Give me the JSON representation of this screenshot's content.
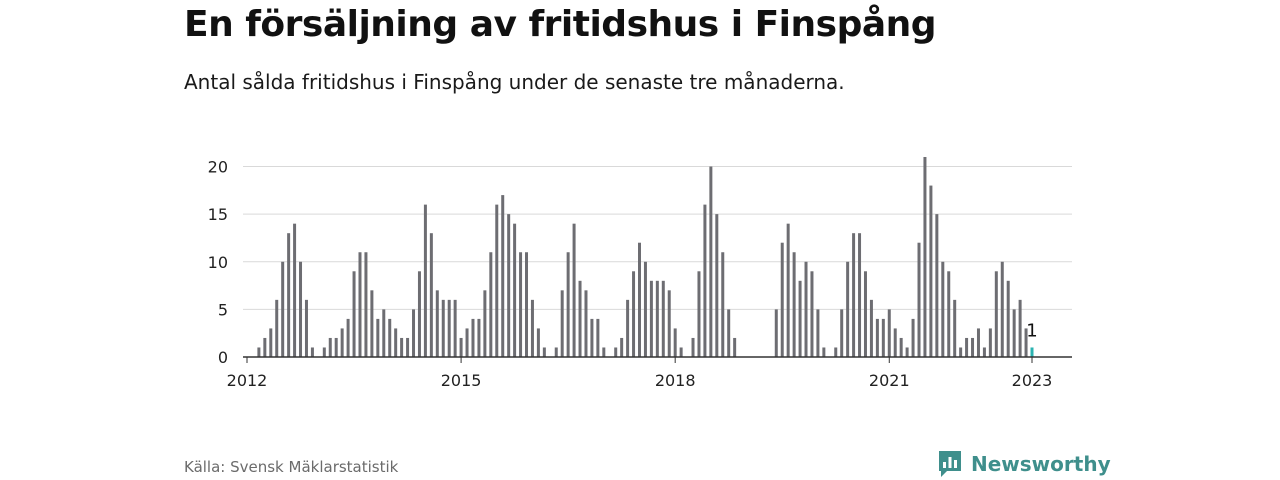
{
  "header": {
    "title": "En försäljning av fritidshus i Finspång",
    "subtitle": "Antal sålda fritidshus i Finspång under de senaste tre månaderna."
  },
  "footer": {
    "source": "Källa: Svensk Mäklarstatistik",
    "brand_name": "Newsworthy",
    "brand_icon": "newsworthy-chart-icon"
  },
  "colors": {
    "bar": "#6d6d72",
    "highlight": "#2bb3b1",
    "grid": "#d9d9d9",
    "axis": "#333333",
    "brand": "#3f8f8c"
  },
  "chart_data": {
    "type": "bar",
    "title": "",
    "xlabel": "",
    "ylabel": "",
    "ylim": [
      0,
      21
    ],
    "yticks": [
      0,
      5,
      10,
      15,
      20
    ],
    "grid": true,
    "x_start": "2012-01",
    "x_end": "2023-01",
    "xticks": [
      {
        "label": "2012",
        "date": "2012-01"
      },
      {
        "label": "2015",
        "date": "2015-01"
      },
      {
        "label": "2018",
        "date": "2018-01"
      },
      {
        "label": "2021",
        "date": "2021-01"
      },
      {
        "label": "2023",
        "date": "2023-01"
      }
    ],
    "highlight": {
      "date": "2023-01",
      "value": 1,
      "label": "1"
    },
    "series": [
      {
        "points": [
          [
            "2012-02",
            0
          ],
          [
            "2012-03",
            1
          ],
          [
            "2012-04",
            2
          ],
          [
            "2012-05",
            3
          ],
          [
            "2012-06",
            6
          ],
          [
            "2012-07",
            10
          ],
          [
            "2012-08",
            13
          ],
          [
            "2012-09",
            14
          ],
          [
            "2012-10",
            10
          ],
          [
            "2012-11",
            6
          ],
          [
            "2012-12",
            1
          ],
          [
            "2013-01",
            0
          ],
          [
            "2013-02",
            1
          ],
          [
            "2013-03",
            2
          ],
          [
            "2013-04",
            2
          ],
          [
            "2013-05",
            3
          ],
          [
            "2013-06",
            4
          ],
          [
            "2013-07",
            9
          ],
          [
            "2013-08",
            11
          ],
          [
            "2013-09",
            11
          ],
          [
            "2013-10",
            7
          ],
          [
            "2013-11",
            4
          ],
          [
            "2013-12",
            5
          ],
          [
            "2014-01",
            4
          ],
          [
            "2014-02",
            3
          ],
          [
            "2014-03",
            2
          ],
          [
            "2014-04",
            2
          ],
          [
            "2014-05",
            5
          ],
          [
            "2014-06",
            9
          ],
          [
            "2014-07",
            16
          ],
          [
            "2014-08",
            13
          ],
          [
            "2014-09",
            7
          ],
          [
            "2014-10",
            6
          ],
          [
            "2014-11",
            6
          ],
          [
            "2014-12",
            6
          ],
          [
            "2015-01",
            2
          ],
          [
            "2015-02",
            3
          ],
          [
            "2015-03",
            4
          ],
          [
            "2015-04",
            4
          ],
          [
            "2015-05",
            7
          ],
          [
            "2015-06",
            11
          ],
          [
            "2015-07",
            16
          ],
          [
            "2015-08",
            17
          ],
          [
            "2015-09",
            15
          ],
          [
            "2015-10",
            14
          ],
          [
            "2015-11",
            11
          ],
          [
            "2015-12",
            11
          ],
          [
            "2016-01",
            6
          ],
          [
            "2016-02",
            3
          ],
          [
            "2016-03",
            1
          ],
          [
            "2016-04",
            0
          ],
          [
            "2016-05",
            1
          ],
          [
            "2016-06",
            7
          ],
          [
            "2016-07",
            11
          ],
          [
            "2016-08",
            14
          ],
          [
            "2016-09",
            8
          ],
          [
            "2016-10",
            7
          ],
          [
            "2016-11",
            4
          ],
          [
            "2016-12",
            4
          ],
          [
            "2017-01",
            1
          ],
          [
            "2017-02",
            0
          ],
          [
            "2017-03",
            1
          ],
          [
            "2017-04",
            2
          ],
          [
            "2017-05",
            6
          ],
          [
            "2017-06",
            9
          ],
          [
            "2017-07",
            12
          ],
          [
            "2017-08",
            10
          ],
          [
            "2017-09",
            8
          ],
          [
            "2017-10",
            8
          ],
          [
            "2017-11",
            8
          ],
          [
            "2017-12",
            7
          ],
          [
            "2018-01",
            3
          ],
          [
            "2018-02",
            1
          ],
          [
            "2018-03",
            0
          ],
          [
            "2018-04",
            2
          ],
          [
            "2018-05",
            9
          ],
          [
            "2018-06",
            16
          ],
          [
            "2018-07",
            20
          ],
          [
            "2018-08",
            15
          ],
          [
            "2018-09",
            11
          ],
          [
            "2018-10",
            5
          ],
          [
            "2018-11",
            2
          ],
          [
            "2019-06",
            5
          ],
          [
            "2019-07",
            12
          ],
          [
            "2019-08",
            14
          ],
          [
            "2019-09",
            11
          ],
          [
            "2019-10",
            8
          ],
          [
            "2019-11",
            10
          ],
          [
            "2019-12",
            9
          ],
          [
            "2020-01",
            5
          ],
          [
            "2020-02",
            1
          ],
          [
            "2020-03",
            0
          ],
          [
            "2020-04",
            1
          ],
          [
            "2020-05",
            5
          ],
          [
            "2020-06",
            10
          ],
          [
            "2020-07",
            13
          ],
          [
            "2020-08",
            13
          ],
          [
            "2020-09",
            9
          ],
          [
            "2020-10",
            6
          ],
          [
            "2020-11",
            4
          ],
          [
            "2020-12",
            4
          ],
          [
            "2021-01",
            5
          ],
          [
            "2021-02",
            3
          ],
          [
            "2021-03",
            2
          ],
          [
            "2021-04",
            1
          ],
          [
            "2021-05",
            4
          ],
          [
            "2021-06",
            12
          ],
          [
            "2021-07",
            21
          ],
          [
            "2021-08",
            18
          ],
          [
            "2021-09",
            15
          ],
          [
            "2021-10",
            10
          ],
          [
            "2021-11",
            9
          ],
          [
            "2021-12",
            6
          ],
          [
            "2022-01",
            1
          ],
          [
            "2022-02",
            2
          ],
          [
            "2022-03",
            2
          ],
          [
            "2022-04",
            3
          ],
          [
            "2022-05",
            1
          ],
          [
            "2022-06",
            3
          ],
          [
            "2022-07",
            9
          ],
          [
            "2022-08",
            10
          ],
          [
            "2022-09",
            8
          ],
          [
            "2022-10",
            5
          ],
          [
            "2022-11",
            6
          ],
          [
            "2022-12",
            3
          ],
          [
            "2023-01",
            1
          ]
        ]
      }
    ]
  }
}
